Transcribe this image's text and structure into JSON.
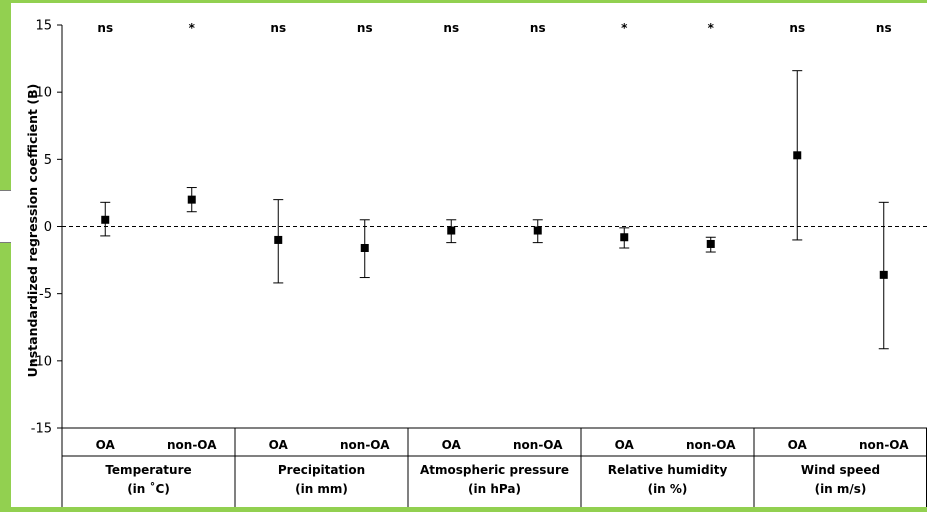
{
  "chart_data": {
    "type": "scatter",
    "ylabel": "Unstandardized regression coefficient (B)",
    "ylim": [
      -15,
      15
    ],
    "yticks": [
      15,
      10,
      5,
      0,
      -5,
      -10,
      -15
    ],
    "reference_line": 0,
    "marker": "square",
    "groups": [
      {
        "label_line1": "Temperature",
        "label_line2": "(in ˚C)",
        "points": [
          {
            "label": "OA",
            "value": 0.5,
            "lower": -0.7,
            "upper": 1.8,
            "significance": "ns"
          },
          {
            "label": "non-OA",
            "value": 2.0,
            "lower": 1.1,
            "upper": 2.9,
            "significance": "*"
          }
        ]
      },
      {
        "label_line1": "Precipitation",
        "label_line2": "(in mm)",
        "points": [
          {
            "label": "OA",
            "value": -1.0,
            "lower": -4.2,
            "upper": 2.0,
            "significance": "ns"
          },
          {
            "label": "non-OA",
            "value": -1.6,
            "lower": -3.8,
            "upper": 0.5,
            "significance": "ns"
          }
        ]
      },
      {
        "label_line1": "Atmospheric pressure",
        "label_line2": "(in hPa)",
        "points": [
          {
            "label": "OA",
            "value": -0.3,
            "lower": -1.2,
            "upper": 0.5,
            "significance": "ns"
          },
          {
            "label": "non-OA",
            "value": -0.3,
            "lower": -1.2,
            "upper": 0.5,
            "significance": "ns"
          }
        ]
      },
      {
        "label_line1": "Relative humidity",
        "label_line2": "(in %)",
        "points": [
          {
            "label": "OA",
            "value": -0.8,
            "lower": -1.6,
            "upper": -0.1,
            "significance": "*"
          },
          {
            "label": "non-OA",
            "value": -1.3,
            "lower": -1.9,
            "upper": -0.8,
            "significance": "*"
          }
        ]
      },
      {
        "label_line1": "Wind speed",
        "label_line2": "(in m/s)",
        "points": [
          {
            "label": "OA",
            "value": 5.3,
            "lower": -1.0,
            "upper": 11.6,
            "significance": "ns"
          },
          {
            "label": "non-OA",
            "value": -3.6,
            "lower": -9.1,
            "upper": 1.8,
            "significance": "ns"
          }
        ]
      }
    ]
  }
}
